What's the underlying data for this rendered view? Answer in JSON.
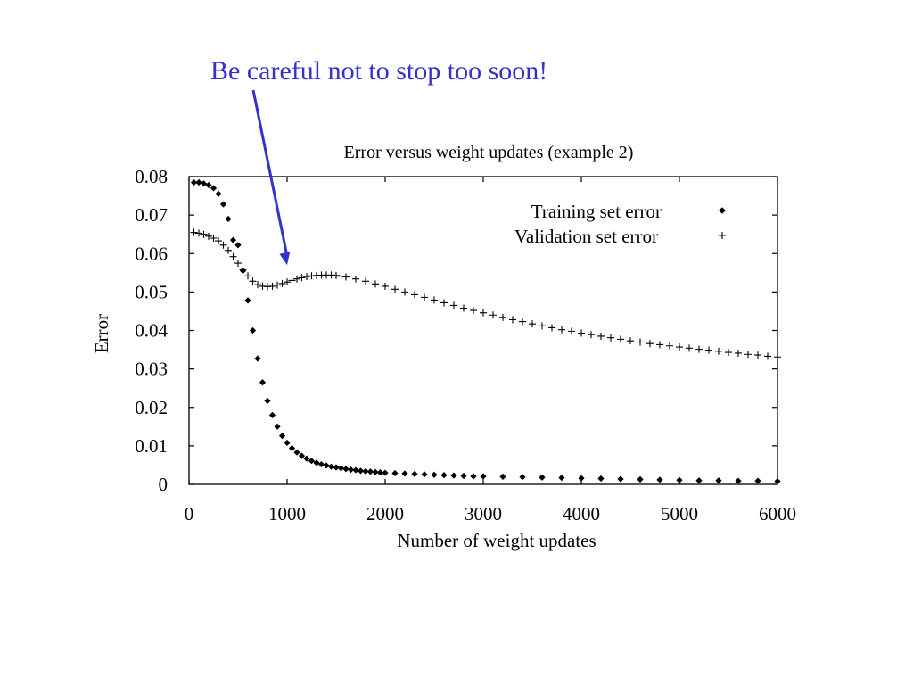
{
  "slide": {
    "callout_text": "Be careful not to stop too soon!",
    "callout_color": "#3333cc"
  },
  "chart_data": {
    "type": "scatter",
    "title": "Error versus weight updates (example 2)",
    "xlabel": "Number of weight updates",
    "ylabel": "Error",
    "xlim": [
      0,
      6000
    ],
    "ylim": [
      0,
      0.08
    ],
    "x_ticks": [
      "0",
      "1000",
      "2000",
      "3000",
      "4000",
      "5000",
      "6000"
    ],
    "y_ticks": [
      "0",
      "0.01",
      "0.02",
      "0.03",
      "0.04",
      "0.05",
      "0.06",
      "0.07",
      "0.08"
    ],
    "legend_position": "top-right",
    "grid": false,
    "series": [
      {
        "name": "Training set error",
        "marker": "diamond",
        "color": "#000000",
        "points": [
          [
            50,
            0.0785
          ],
          [
            100,
            0.0785
          ],
          [
            150,
            0.0782
          ],
          [
            200,
            0.0778
          ],
          [
            250,
            0.077
          ],
          [
            300,
            0.0755
          ],
          [
            350,
            0.0728
          ],
          [
            400,
            0.069
          ],
          [
            450,
            0.0635
          ],
          [
            500,
            0.0622
          ],
          [
            550,
            0.0555
          ],
          [
            600,
            0.0478
          ],
          [
            650,
            0.04
          ],
          [
            700,
            0.0327
          ],
          [
            750,
            0.0265
          ],
          [
            800,
            0.0217
          ],
          [
            850,
            0.018
          ],
          [
            900,
            0.015
          ],
          [
            950,
            0.0126
          ],
          [
            1000,
            0.0108
          ],
          [
            1050,
            0.0094
          ],
          [
            1100,
            0.0083
          ],
          [
            1150,
            0.0074
          ],
          [
            1200,
            0.0067
          ],
          [
            1250,
            0.0061
          ],
          [
            1300,
            0.0056
          ],
          [
            1350,
            0.0052
          ],
          [
            1400,
            0.0049
          ],
          [
            1450,
            0.0046
          ],
          [
            1500,
            0.0044
          ],
          [
            1550,
            0.0042
          ],
          [
            1600,
            0.004
          ],
          [
            1650,
            0.0038
          ],
          [
            1700,
            0.0037
          ],
          [
            1750,
            0.0035
          ],
          [
            1800,
            0.0034
          ],
          [
            1850,
            0.0033
          ],
          [
            1900,
            0.0032
          ],
          [
            1950,
            0.0031
          ],
          [
            2000,
            0.003
          ],
          [
            2100,
            0.0029
          ],
          [
            2200,
            0.0028
          ],
          [
            2300,
            0.0027
          ],
          [
            2400,
            0.0026
          ],
          [
            2500,
            0.0025
          ],
          [
            2600,
            0.0024
          ],
          [
            2700,
            0.0023
          ],
          [
            2800,
            0.0022
          ],
          [
            2900,
            0.0021
          ],
          [
            3000,
            0.0021
          ],
          [
            3200,
            0.002
          ],
          [
            3400,
            0.0019
          ],
          [
            3600,
            0.0018
          ],
          [
            3800,
            0.0017
          ],
          [
            4000,
            0.0016
          ],
          [
            4200,
            0.0015
          ],
          [
            4400,
            0.0014
          ],
          [
            4600,
            0.0013
          ],
          [
            4800,
            0.0012
          ],
          [
            5000,
            0.0011
          ],
          [
            5200,
            0.001
          ],
          [
            5400,
            0.001
          ],
          [
            5600,
            0.0009
          ],
          [
            5800,
            0.0009
          ],
          [
            6000,
            0.0008
          ]
        ]
      },
      {
        "name": "Validation set error",
        "marker": "plus",
        "color": "#000000",
        "points": [
          [
            50,
            0.0655
          ],
          [
            100,
            0.0653
          ],
          [
            150,
            0.065
          ],
          [
            200,
            0.0645
          ],
          [
            250,
            0.064
          ],
          [
            300,
            0.0633
          ],
          [
            350,
            0.0622
          ],
          [
            400,
            0.0608
          ],
          [
            450,
            0.0592
          ],
          [
            500,
            0.0575
          ],
          [
            550,
            0.0558
          ],
          [
            600,
            0.0542
          ],
          [
            650,
            0.0528
          ],
          [
            700,
            0.0519
          ],
          [
            750,
            0.0515
          ],
          [
            800,
            0.0514
          ],
          [
            850,
            0.0515
          ],
          [
            900,
            0.0518
          ],
          [
            950,
            0.0522
          ],
          [
            1000,
            0.0526
          ],
          [
            1050,
            0.053
          ],
          [
            1100,
            0.0534
          ],
          [
            1150,
            0.0537
          ],
          [
            1200,
            0.054
          ],
          [
            1250,
            0.0542
          ],
          [
            1300,
            0.0543
          ],
          [
            1350,
            0.0544
          ],
          [
            1400,
            0.0544
          ],
          [
            1450,
            0.0544
          ],
          [
            1500,
            0.0543
          ],
          [
            1550,
            0.0541
          ],
          [
            1600,
            0.0539
          ],
          [
            1700,
            0.0534
          ],
          [
            1800,
            0.0528
          ],
          [
            1900,
            0.0521
          ],
          [
            2000,
            0.0515
          ],
          [
            2100,
            0.0507
          ],
          [
            2200,
            0.05
          ],
          [
            2300,
            0.0493
          ],
          [
            2400,
            0.0486
          ],
          [
            2500,
            0.0479
          ],
          [
            2600,
            0.0472
          ],
          [
            2700,
            0.0465
          ],
          [
            2800,
            0.0458
          ],
          [
            2900,
            0.0452
          ],
          [
            3000,
            0.0446
          ],
          [
            3100,
            0.044
          ],
          [
            3200,
            0.0434
          ],
          [
            3300,
            0.0428
          ],
          [
            3400,
            0.0423
          ],
          [
            3500,
            0.0417
          ],
          [
            3600,
            0.0412
          ],
          [
            3700,
            0.0407
          ],
          [
            3800,
            0.0402
          ],
          [
            3900,
            0.0398
          ],
          [
            4000,
            0.0393
          ],
          [
            4100,
            0.0389
          ],
          [
            4200,
            0.0385
          ],
          [
            4300,
            0.0381
          ],
          [
            4400,
            0.0377
          ],
          [
            4500,
            0.0373
          ],
          [
            4600,
            0.037
          ],
          [
            4700,
            0.0366
          ],
          [
            4800,
            0.0363
          ],
          [
            4900,
            0.036
          ],
          [
            5000,
            0.0357
          ],
          [
            5100,
            0.0354
          ],
          [
            5200,
            0.0351
          ],
          [
            5300,
            0.0349
          ],
          [
            5400,
            0.0346
          ],
          [
            5500,
            0.0343
          ],
          [
            5600,
            0.0341
          ],
          [
            5700,
            0.0338
          ],
          [
            5800,
            0.0336
          ],
          [
            5900,
            0.0333
          ],
          [
            6000,
            0.0331
          ]
        ]
      }
    ],
    "annotation": {
      "text_ref": "slide.callout_text",
      "points_to": [
        1000,
        0.057
      ]
    }
  }
}
